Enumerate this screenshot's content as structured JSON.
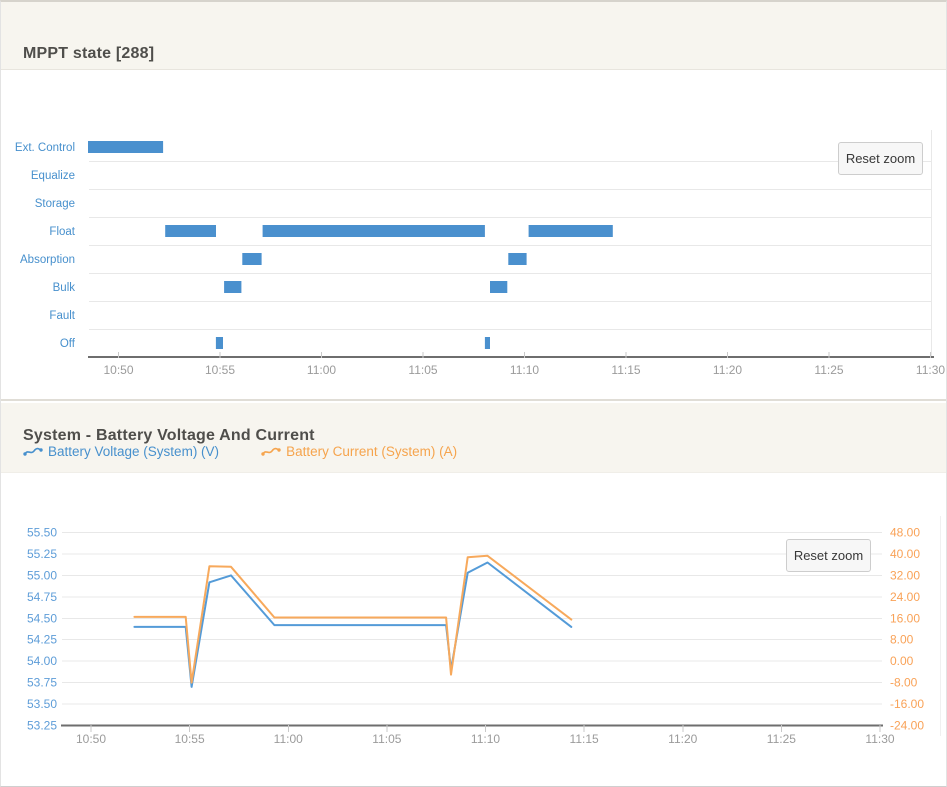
{
  "panels": [
    {
      "title": "MPPT state [288]",
      "reset_zoom_label": "Reset zoom"
    },
    {
      "title": "System - Battery Voltage And Current",
      "reset_zoom_label": "Reset zoom",
      "legend": [
        {
          "label": "Battery Voltage (System) (V)",
          "color": "#4790cd"
        },
        {
          "label": "Battery Current (System) (A)",
          "color": "#f6a44d"
        }
      ]
    }
  ],
  "colors": {
    "panel_header_bg": "#f7f5ef",
    "state_bar_blue": "#4a90ce",
    "category_label_blue": "#4790cd",
    "line_blue": "#549bd8",
    "line_orange": "#f7a95c",
    "left_axis_blue": "#5e9dd8",
    "right_axis_orange": "#f9a257",
    "x_label_gray": "#9b9b9b",
    "grid_gray": "#e8e8e8",
    "axis_dark_gray": "#6e6e6e"
  },
  "chart_data": [
    {
      "type": "bar",
      "variant": "horizontal-state-timeline",
      "title": "MPPT state [288]",
      "categories": [
        "Ext. Control",
        "Equalize",
        "Storage",
        "Float",
        "Absorption",
        "Bulk",
        "Fault",
        "Off"
      ],
      "x_tick_labels": [
        "10:50",
        "10:55",
        "11:00",
        "11:05",
        "11:10",
        "11:15",
        "11:20",
        "11:25",
        "11:30"
      ],
      "x_range": [
        "10:48:30",
        "11:30:10"
      ],
      "bar_color": "#4a90ce",
      "bars": [
        {
          "state": "Ext. Control",
          "start": "10:48:30",
          "end": "10:52:12"
        },
        {
          "state": "Float",
          "start": "10:52:18",
          "end": "10:54:48"
        },
        {
          "state": "Off",
          "start": "10:54:48",
          "end": "10:55:09"
        },
        {
          "state": "Bulk",
          "start": "10:55:12",
          "end": "10:56:03"
        },
        {
          "state": "Absorption",
          "start": "10:56:06",
          "end": "10:57:03"
        },
        {
          "state": "Float",
          "start": "10:57:06",
          "end": "11:08:03"
        },
        {
          "state": "Off",
          "start": "11:08:03",
          "end": "11:08:18"
        },
        {
          "state": "Bulk",
          "start": "11:08:18",
          "end": "11:09:09"
        },
        {
          "state": "Absorption",
          "start": "11:09:12",
          "end": "11:10:06"
        },
        {
          "state": "Float",
          "start": "11:10:12",
          "end": "11:14:21"
        }
      ]
    },
    {
      "type": "line",
      "title": "System - Battery Voltage And Current",
      "x_tick_labels": [
        "10:50",
        "10:55",
        "11:00",
        "11:05",
        "11:10",
        "11:15",
        "11:20",
        "11:25",
        "11:30"
      ],
      "left_axis": {
        "label": "Battery Voltage (System) (V)",
        "color": "#5e9dd8",
        "min": 53.25,
        "max": 55.5,
        "tick_step": 0.25,
        "ticks": [
          "55.50",
          "55.25",
          "55.00",
          "54.75",
          "54.50",
          "54.25",
          "54.00",
          "53.75",
          "53.50",
          "53.25"
        ]
      },
      "right_axis": {
        "label": "Battery Current (System) (A)",
        "color": "#f9a257",
        "min": -24,
        "max": 48,
        "tick_step": 8,
        "ticks": [
          "48.00",
          "40.00",
          "32.00",
          "24.00",
          "16.00",
          "8.00",
          "0.00",
          "-8.00",
          "-16.00",
          "-24.00"
        ]
      },
      "series": [
        {
          "name": "Battery Voltage (System) (V)",
          "axis": "left",
          "color": "#549bd8",
          "points": [
            [
              "10:52:12",
              54.4
            ],
            [
              "10:54:48",
              54.4
            ],
            [
              "10:55:06",
              53.7
            ],
            [
              "10:56:00",
              54.92
            ],
            [
              "10:57:06",
              55.0
            ],
            [
              "10:59:18",
              54.42
            ],
            [
              "11:08:00",
              54.42
            ],
            [
              "11:08:15",
              53.9
            ],
            [
              "11:09:06",
              55.03
            ],
            [
              "11:10:06",
              55.15
            ],
            [
              "11:14:21",
              54.4
            ]
          ]
        },
        {
          "name": "Battery Current (System) (A)",
          "axis": "right",
          "color": "#f7a95c",
          "points": [
            [
              "10:52:12",
              16.5
            ],
            [
              "10:54:48",
              16.5
            ],
            [
              "10:55:06",
              -8.0
            ],
            [
              "10:56:00",
              35.4
            ],
            [
              "10:57:06",
              35.2
            ],
            [
              "10:59:18",
              16.3
            ],
            [
              "11:08:00",
              16.3
            ],
            [
              "11:08:15",
              -5.0
            ],
            [
              "11:09:06",
              38.8
            ],
            [
              "11:10:06",
              39.3
            ],
            [
              "11:14:21",
              15.5
            ]
          ]
        }
      ]
    }
  ]
}
